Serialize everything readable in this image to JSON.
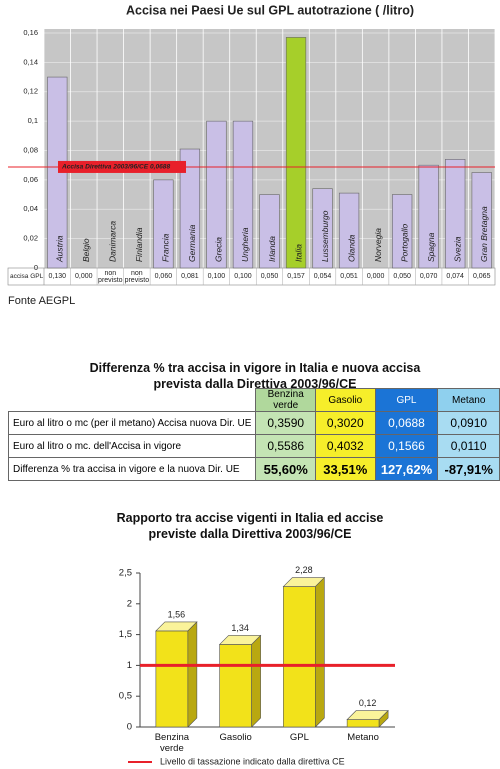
{
  "chart_data": [
    {
      "type": "bar",
      "title": "Accisa nei Paesi Ue sul GPL autotrazione ( /litro)",
      "categories": [
        "Austria",
        "Belgio",
        "Danimarca",
        "Finlandia",
        "Francia",
        "Germania",
        "Grecia",
        "Ungheria",
        "Irlanda",
        "Italia",
        "Lussemburgo",
        "Olanda",
        "Norvegia",
        "Portogallo",
        "Spagna",
        "Svezia",
        "Gran Bretagna"
      ],
      "series": [
        {
          "name": "accisa GPL",
          "colors": [
            "#c9bfe6",
            "#c9bfe6",
            "#c9bfe6",
            "#c9bfe6",
            "#c9bfe6",
            "#c9bfe6",
            "#c9bfe6",
            "#c9bfe6",
            "#c9bfe6",
            "#a6cf2a",
            "#c9bfe6",
            "#c9bfe6",
            "#c9bfe6",
            "#c9bfe6",
            "#c9bfe6",
            "#c9bfe6",
            "#c9bfe6"
          ],
          "values": [
            0.13,
            0.0,
            null,
            null,
            0.06,
            0.081,
            0.1,
            0.1,
            0.05,
            0.157,
            0.054,
            0.051,
            0.0,
            0.05,
            0.07,
            0.074,
            0.065
          ],
          "value_labels": [
            "0,130",
            "0,000",
            "non previsto",
            "non previsto",
            "0,060",
            "0,081",
            "0,100",
            "0,100",
            "0,050",
            "0,157",
            "0,054",
            "0,051",
            "0,000",
            "0,050",
            "0,070",
            "0,074",
            "0,065"
          ]
        }
      ],
      "ylim": [
        0,
        0.16
      ],
      "yticks": [
        0,
        {
          "value": 0.02,
          "label": "0,02"
        },
        {
          "value": 0.04,
          "label": "0,04"
        },
        {
          "value": 0.06,
          "label": "0,06"
        },
        {
          "value": 0.08,
          "label": "0,08"
        },
        {
          "value": 0.1,
          "label": "0,1"
        },
        {
          "value": 0.12,
          "label": "0,12"
        },
        {
          "value": 0.14,
          "label": "0,14"
        },
        {
          "value": 0.16,
          "label": "0,16"
        }
      ],
      "grid": true,
      "reference_line": {
        "value": 0.0688,
        "label": "Accisa Direttiva 2003/96/CE 0,0688",
        "color": "#e8202a"
      },
      "source": "Fonte AEGPL"
    },
    {
      "type": "bar3d",
      "title": "Rapporto tra accise vigenti in Italia ed accise previste dalla Direttiva 2003/96/CE",
      "categories": [
        "Benzina verde",
        "Gasolio",
        "GPL",
        "Metano"
      ],
      "values": [
        1.56,
        1.34,
        2.28,
        0.12
      ],
      "value_labels": [
        "1,56",
        "1,34",
        "2,28",
        "0,12"
      ],
      "color": "#f2e21a",
      "ylim": [
        0,
        2.5
      ],
      "yticks": [
        0,
        {
          "value": 0.5,
          "label": "0,5"
        },
        1,
        {
          "value": 1.5,
          "label": "1,5"
        },
        2,
        {
          "value": 2.5,
          "label": "2,5"
        }
      ],
      "reference_line": {
        "value": 1,
        "label": "Livello di tassazione indicato dalla direttiva CE",
        "color": "#e8202a"
      }
    }
  ],
  "table": {
    "title": "Differenza % tra accisa in vigore in Italia e nuova accisa prevista dalla Direttiva 2003/96/CE",
    "columns": [
      "Benzina verde",
      "Gasolio",
      "GPL",
      "Metano"
    ],
    "rows": [
      {
        "label": "Euro al litro o mc (per il metano) Accisa nuova Dir. UE",
        "values": [
          "0,3590",
          "0,3020",
          "0,0688",
          "0,0910"
        ]
      },
      {
        "label": "Euro al litro o mc. dell'Accisa in vigore",
        "values": [
          "0,5586",
          "0,4032",
          "0,1566",
          "0,0110"
        ]
      },
      {
        "label": "Differenza % tra accisa in vigore e la nuova Dir. UE",
        "values": [
          "55,60%",
          "33,51%",
          "127,62%",
          "-87,91%"
        ]
      }
    ]
  }
}
